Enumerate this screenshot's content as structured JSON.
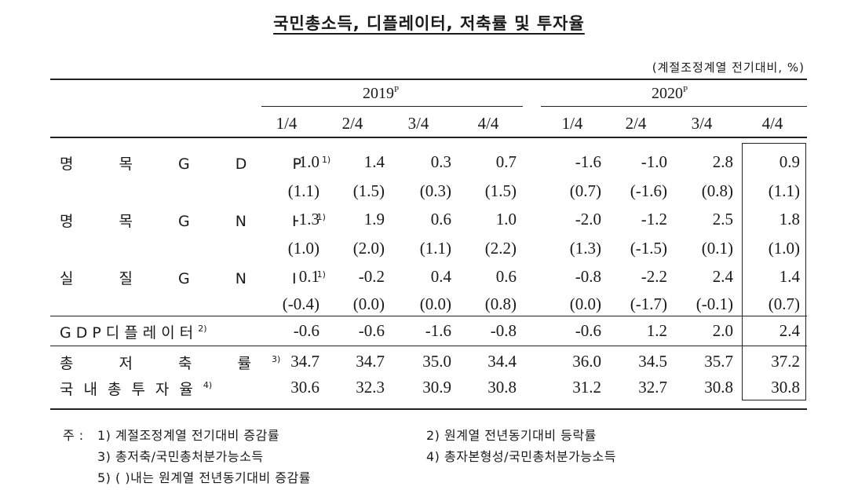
{
  "title": "국민총소득, 디플레이터, 저축률 및 투자율",
  "unit": "(계절조정계열 전기대비, %)",
  "years": [
    {
      "label": "2019",
      "sup": "P"
    },
    {
      "label": "2020",
      "sup": "P"
    }
  ],
  "quarters": [
    "1/4",
    "2/4",
    "3/4",
    "4/4",
    "1/4",
    "2/4",
    "3/4",
    "4/4"
  ],
  "rows": [
    {
      "label": "명 목 G D P",
      "sup": "1)",
      "values": [
        "-1.0",
        "1.4",
        "0.3",
        "0.7",
        "-1.6",
        "-1.0",
        "2.8",
        "0.9"
      ]
    },
    {
      "label": "",
      "sup": "",
      "values": [
        "(1.1)",
        "(1.5)",
        "(0.3)",
        "(1.5)",
        "(0.7)",
        "(-1.6)",
        "(0.8)",
        "(1.1)"
      ]
    },
    {
      "label": "명 목 G N I",
      "sup": "1)",
      "values": [
        "-1.3",
        "1.9",
        "0.6",
        "1.0",
        "-2.0",
        "-1.2",
        "2.5",
        "1.8"
      ]
    },
    {
      "label": "",
      "sup": "",
      "values": [
        "(1.0)",
        "(2.0)",
        "(1.1)",
        "(2.2)",
        "(1.3)",
        "(-1.5)",
        "(0.1)",
        "(1.0)"
      ]
    },
    {
      "label": "실 질 G N I",
      "sup": "1)",
      "values": [
        "0.1",
        "-0.2",
        "0.4",
        "0.6",
        "-0.8",
        "-2.2",
        "2.4",
        "1.4"
      ]
    },
    {
      "label": "",
      "sup": "",
      "values": [
        "(-0.4)",
        "(0.0)",
        "(0.0)",
        "(0.8)",
        "(0.0)",
        "(-1.7)",
        "(-0.1)",
        "(0.7)"
      ]
    },
    {
      "label": "GDP디플레이터",
      "sup": "2)",
      "values": [
        "-0.6",
        "-0.6",
        "-1.6",
        "-0.8",
        "-0.6",
        "1.2",
        "2.0",
        "2.4"
      ]
    },
    {
      "label": "총 저 축 률",
      "sup": "3)",
      "values": [
        "34.7",
        "34.7",
        "35.0",
        "34.4",
        "36.0",
        "34.5",
        "35.7",
        "37.2"
      ]
    },
    {
      "label": "국내총투자율",
      "sup": "4)",
      "values": [
        "30.6",
        "32.3",
        "30.9",
        "30.8",
        "31.2",
        "32.7",
        "30.8",
        "30.8"
      ]
    }
  ],
  "notes": {
    "prefix": "주 :",
    "n1": "1) 계절조정계열 전기대비 증감률",
    "n2": "2) 원계열 전년동기대비 등락률",
    "n3": "3) 총저축/국민총처분가능소득",
    "n4": "4) 총자본형성/국민총처분가능소득",
    "n5": "5) (   )내는 원계열 전년동기대비 증감률"
  }
}
